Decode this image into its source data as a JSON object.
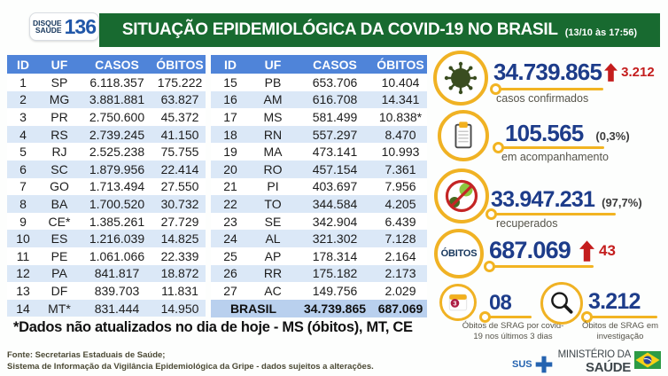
{
  "header": {
    "logo": {
      "line1": "DISQUE",
      "line2": "SAÚDE",
      "number": "136"
    },
    "title": "SITUAÇÃO EPIDEMIOLÓGICA DA COVID-19 NO BRASIL",
    "timestamp": "(13/10 às 17:56)"
  },
  "tables": {
    "columns": [
      "ID",
      "UF",
      "CASOS",
      "ÓBITOS"
    ],
    "left_rows": [
      [
        "1",
        "SP",
        "6.118.357",
        "175.222"
      ],
      [
        "2",
        "MG",
        "3.881.881",
        "63.827"
      ],
      [
        "3",
        "PR",
        "2.750.600",
        "45.372"
      ],
      [
        "4",
        "RS",
        "2.739.245",
        "41.150"
      ],
      [
        "5",
        "RJ",
        "2.525.238",
        "75.755"
      ],
      [
        "6",
        "SC",
        "1.879.956",
        "22.414"
      ],
      [
        "7",
        "GO",
        "1.713.494",
        "27.550"
      ],
      [
        "8",
        "BA",
        "1.700.520",
        "30.732"
      ],
      [
        "9",
        "CE*",
        "1.385.261",
        "27.729"
      ],
      [
        "10",
        "ES",
        "1.216.039",
        "14.825"
      ],
      [
        "11",
        "PE",
        "1.061.066",
        "22.339"
      ],
      [
        "12",
        "PA",
        "841.817",
        "18.872"
      ],
      [
        "13",
        "DF",
        "839.703",
        "11.831"
      ],
      [
        "14",
        "MT*",
        "831.444",
        "14.950"
      ]
    ],
    "right_rows": [
      [
        "15",
        "PB",
        "653.706",
        "10.404"
      ],
      [
        "16",
        "AM",
        "616.708",
        "14.341"
      ],
      [
        "17",
        "MS",
        "581.499",
        "10.838*"
      ],
      [
        "18",
        "RN",
        "557.297",
        "8.470"
      ],
      [
        "19",
        "MA",
        "473.141",
        "10.993"
      ],
      [
        "20",
        "RO",
        "457.154",
        "7.361"
      ],
      [
        "21",
        "PI",
        "403.697",
        "7.956"
      ],
      [
        "22",
        "TO",
        "344.584",
        "4.205"
      ],
      [
        "23",
        "SE",
        "342.904",
        "6.439"
      ],
      [
        "24",
        "AL",
        "321.302",
        "7.128"
      ],
      [
        "25",
        "AP",
        "178.314",
        "2.164"
      ],
      [
        "26",
        "RR",
        "175.182",
        "2.173"
      ],
      [
        "27",
        "AC",
        "149.756",
        "2.029"
      ]
    ],
    "total_row": {
      "label": "BRASIL",
      "casos": "34.739.865",
      "obitos": "687.069"
    }
  },
  "stats": {
    "confirmed": {
      "value": "34.739.865",
      "delta": "3.212",
      "label": "casos confirmados"
    },
    "monitoring": {
      "value": "105.565",
      "percent": "(0,3%)",
      "label": "em acompanhamento"
    },
    "recovered": {
      "value": "33.947.231",
      "percent": "(97,7%)",
      "label": "recuperados"
    },
    "deaths": {
      "badge": "ÓBITOS",
      "value": "687.069",
      "delta": "43"
    },
    "srag_recent": {
      "value": "08",
      "badge": "3",
      "label": "Óbitos de SRAG por covid-19 nos últimos 3 dias"
    },
    "srag_investigation": {
      "value": "3.212",
      "label": "Óbitos de SRAG em investigação"
    }
  },
  "footnotes": {
    "not_updated": "*Dados não atualizados no dia de hoje - MS (óbitos), MT, CE",
    "source_line1": "Fonte: Secretarias Estaduais de Saúde;",
    "source_line2": "Sistema de Informação da Vigilância Epidemiológica da Gripe - dados sujeitos a alterações."
  },
  "footer": {
    "sus_label": "SUS",
    "ministry_line1": "MINISTÉRIO DA",
    "ministry_line2": "SAÚDE"
  },
  "colors": {
    "banner_green": "#186a30",
    "table_header_blue": "#4f84d9",
    "stripe_blue": "#dbe8f7",
    "total_row_blue": "#b9d0ee",
    "number_navy": "#1d3c8a",
    "alert_red": "#c41d1d",
    "ring_yellow": "#f0b224",
    "logo_blue": "#2157a8"
  }
}
